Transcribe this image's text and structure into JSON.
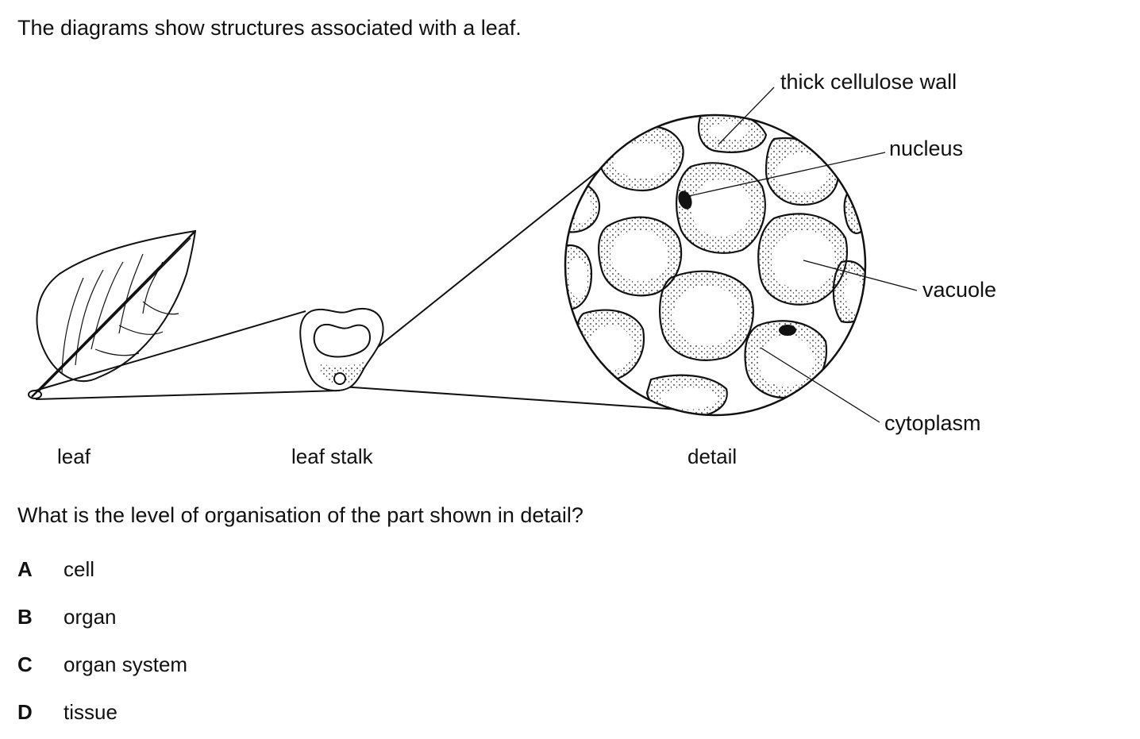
{
  "intro": "The diagrams show structures associated with a leaf.",
  "labels": {
    "wall": "thick cellulose wall",
    "nucleus": "nucleus",
    "vacuole": "vacuole",
    "cytoplasm": "cytoplasm",
    "leaf": "leaf",
    "stalk": "leaf stalk",
    "detail": "detail"
  },
  "question": "What is the level of organisation of the part shown in detail?",
  "options": [
    {
      "letter": "A",
      "text": "cell"
    },
    {
      "letter": "B",
      "text": "organ"
    },
    {
      "letter": "C",
      "text": "organ system"
    },
    {
      "letter": "D",
      "text": "tissue"
    }
  ]
}
